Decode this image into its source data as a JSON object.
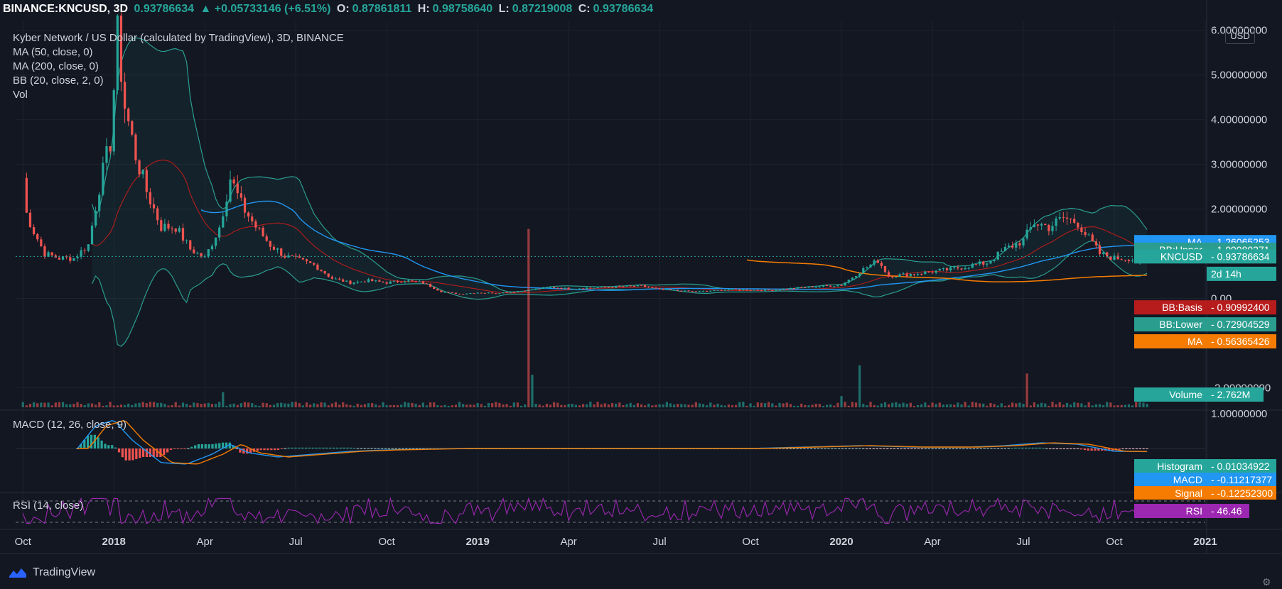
{
  "header": {
    "symbol": "BINANCE:KNCUSD, 3D",
    "last": "0.93786634",
    "change": "▲ +0.05733146 (+6.51%)",
    "open_label": "O:",
    "open": "0.87861811",
    "high_label": "H:",
    "high": "0.98758640",
    "low_label": "L:",
    "low": "0.87219008",
    "close_label": "C:",
    "close": "0.93786634"
  },
  "legend": {
    "title": "Kyber Network / US Dollar (calculated by TradingView), 3D, BINANCE",
    "ma50": "MA (50, close, 0)",
    "ma200": "MA (200, close, 0)",
    "bb": "BB (20, close, 2, 0)",
    "vol": "Vol"
  },
  "currency_button": "USD",
  "macd_label": "MACD (12, 26, close, 9)",
  "rsi_label": "RSI (14, close)",
  "brand": "TradingView",
  "colors": {
    "up": "#26a69a",
    "down": "#ef5350",
    "ma50": "#2196f3",
    "ma200": "#f57c00",
    "bb": "#2a9d8f",
    "bbBasis": "#b71c1c",
    "rsi": "#9c27b0",
    "bg": "#131722",
    "grid": "#1e222d"
  },
  "chart_data": {
    "type": "line",
    "title": "Kyber Network / US Dollar (calculated by TradingView), 3D, BINANCE",
    "ylim": [
      -2.5,
      6.2
    ],
    "y_ticks": [
      {
        "v": 6,
        "label": "6.00000000"
      },
      {
        "v": 5,
        "label": "5.00000000"
      },
      {
        "v": 4,
        "label": "4.00000000"
      },
      {
        "v": 3,
        "label": "3.00000000"
      },
      {
        "v": 2,
        "label": "2.00000000"
      },
      {
        "v": 0,
        "label": "0.00"
      },
      {
        "v": -2,
        "label": "-2.00000000"
      }
    ],
    "x_ticks": [
      "Oct",
      "2018",
      "Apr",
      "Jul",
      "Oct",
      "2019",
      "Apr",
      "Jul",
      "Oct",
      "2020",
      "Apr",
      "Jul",
      "Oct",
      "2021"
    ],
    "x_tick_pos": [
      0.0,
      0.25,
      0.5,
      0.75,
      1.0,
      1.25,
      1.5,
      1.75,
      2.0,
      2.25,
      2.5,
      2.75,
      3.0,
      3.25
    ],
    "x_range": [
      -0.02,
      3.25
    ],
    "close_anchors": [
      [
        0.0,
        2.7
      ],
      [
        0.01,
        1.9
      ],
      [
        0.03,
        1.5
      ],
      [
        0.06,
        1.0
      ],
      [
        0.1,
        0.9
      ],
      [
        0.14,
        0.9
      ],
      [
        0.18,
        1.2
      ],
      [
        0.21,
        2.5
      ],
      [
        0.24,
        3.5
      ],
      [
        0.26,
        5.9
      ],
      [
        0.28,
        4.3
      ],
      [
        0.31,
        3.2
      ],
      [
        0.34,
        2.4
      ],
      [
        0.38,
        1.6
      ],
      [
        0.42,
        1.6
      ],
      [
        0.46,
        1.1
      ],
      [
        0.5,
        0.9
      ],
      [
        0.54,
        1.6
      ],
      [
        0.57,
        2.7
      ],
      [
        0.6,
        2.1
      ],
      [
        0.64,
        1.6
      ],
      [
        0.68,
        1.2
      ],
      [
        0.72,
        0.95
      ],
      [
        0.76,
        0.85
      ],
      [
        0.8,
        0.75
      ],
      [
        0.85,
        0.45
      ],
      [
        0.9,
        0.35
      ],
      [
        0.95,
        0.4
      ],
      [
        1.0,
        0.35
      ],
      [
        1.05,
        0.4
      ],
      [
        1.1,
        0.35
      ],
      [
        1.15,
        0.15
      ],
      [
        1.2,
        0.1
      ],
      [
        1.25,
        0.13
      ],
      [
        1.3,
        0.12
      ],
      [
        1.35,
        0.15
      ],
      [
        1.4,
        0.2
      ],
      [
        1.45,
        0.25
      ],
      [
        1.5,
        0.22
      ],
      [
        1.6,
        0.25
      ],
      [
        1.7,
        0.28
      ],
      [
        1.75,
        0.2
      ],
      [
        1.85,
        0.15
      ],
      [
        1.95,
        0.2
      ],
      [
        2.05,
        0.18
      ],
      [
        2.15,
        0.25
      ],
      [
        2.25,
        0.3
      ],
      [
        2.3,
        0.6
      ],
      [
        2.35,
        0.85
      ],
      [
        2.38,
        0.5
      ],
      [
        2.45,
        0.55
      ],
      [
        2.55,
        0.65
      ],
      [
        2.65,
        0.8
      ],
      [
        2.7,
        1.1
      ],
      [
        2.75,
        1.3
      ],
      [
        2.78,
        1.7
      ],
      [
        2.82,
        1.6
      ],
      [
        2.86,
        1.8
      ],
      [
        2.9,
        1.7
      ],
      [
        2.92,
        1.45
      ],
      [
        2.96,
        1.0
      ],
      [
        3.0,
        0.9
      ],
      [
        3.04,
        0.9
      ],
      [
        3.07,
        0.8
      ],
      [
        3.09,
        0.94
      ]
    ],
    "price_labels": [
      {
        "label": "MA",
        "value": "1.26065253",
        "bg": "#2196f3",
        "v": 1.26
      },
      {
        "label": "BB:Upper",
        "value": "1.09080271",
        "bg": "#2a9d8f",
        "v": 1.09
      },
      {
        "label": "KNCUSD",
        "value": "0.93786634",
        "bg": "#26a69a",
        "v": 0.94
      },
      {
        "label": "",
        "value": "2d 14h",
        "bg": "#26a69a",
        "v": 0.55
      },
      {
        "label": "BB:Basis",
        "value": "0.90992400",
        "bg": "#b71c1c",
        "v": -0.2
      },
      {
        "label": "BB:Lower",
        "value": "0.72904529",
        "bg": "#2a9d8f",
        "v": -0.58
      },
      {
        "label": "MA",
        "value": "0.56365426",
        "bg": "#f57c00",
        "v": -0.96
      }
    ],
    "volume_label": {
      "label": "Volume",
      "value": "2.762M"
    },
    "volume_spikes": [
      [
        1.39,
        260
      ],
      [
        1.4,
        70
      ],
      [
        2.3,
        75
      ],
      [
        2.76,
        60
      ],
      [
        0.55,
        25
      ],
      [
        2.25,
        30
      ]
    ],
    "macd_ticks": [
      "1.00000000"
    ],
    "macd_anchors": [
      [
        0.15,
        0.0
      ],
      [
        0.2,
        0.8
      ],
      [
        0.25,
        1.0
      ],
      [
        0.3,
        0.3
      ],
      [
        0.38,
        -0.5
      ],
      [
        0.45,
        -0.55
      ],
      [
        0.52,
        -0.2
      ],
      [
        0.57,
        0.15
      ],
      [
        0.62,
        -0.15
      ],
      [
        0.7,
        -0.3
      ],
      [
        0.8,
        -0.2
      ],
      [
        0.9,
        -0.1
      ],
      [
        1.0,
        -0.05
      ],
      [
        1.2,
        0.0
      ],
      [
        1.5,
        0.0
      ],
      [
        2.0,
        0.0
      ],
      [
        2.3,
        0.1
      ],
      [
        2.45,
        0.05
      ],
      [
        2.6,
        0.05
      ],
      [
        2.7,
        0.1
      ],
      [
        2.8,
        0.2
      ],
      [
        2.9,
        0.15
      ],
      [
        3.0,
        -0.1
      ],
      [
        3.09,
        -0.11
      ]
    ],
    "macd_labels": [
      {
        "label": "Histogram",
        "value": "0.01034922",
        "bg": "#26a69a"
      },
      {
        "label": "MACD",
        "value": "-0.11217377",
        "bg": "#2196f3"
      },
      {
        "label": "Signal",
        "value": "-0.12252300",
        "bg": "#f57c00"
      }
    ],
    "rsi_value": {
      "label": "RSI",
      "value": "46.46"
    }
  }
}
